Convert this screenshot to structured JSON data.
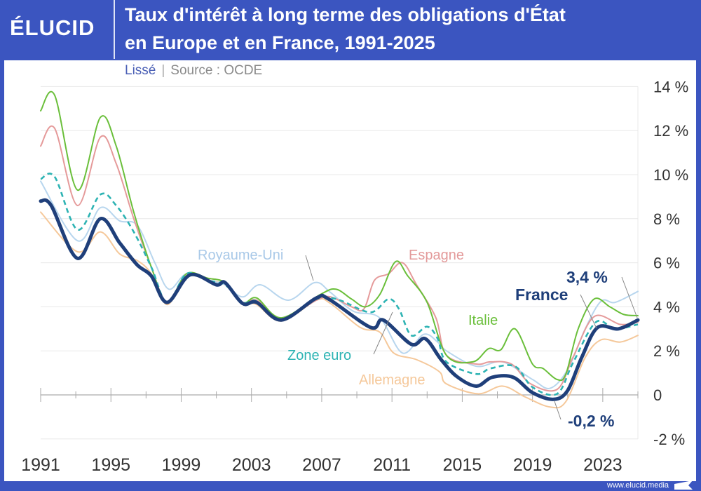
{
  "header": {
    "logo": "ÉLUCID",
    "title_line1": "Taux d'intérêt à long terme des obligations d'État",
    "title_line2": "en Europe et en France, 1991-2025",
    "subtitle_smoothed": "Lissé",
    "subtitle_separator": "|",
    "subtitle_source": "Source : OCDE"
  },
  "footer": {
    "website": "www.elucid.media"
  },
  "colors": {
    "header": "#3b55c0",
    "France": "#1f3f7a",
    "Italie": "#6abf3a",
    "Espagne": "#e59a9a",
    "Zone euro": "#2db3b3",
    "Royaume-Uni": "#b8d6ee",
    "Allemagne": "#f5c89a"
  },
  "chart_data": {
    "type": "line",
    "title": "Taux d'intérêt à long terme des obligations d'État en Europe et en France, 1991-2025",
    "xlim": [
      1991,
      2025
    ],
    "ylim": [
      -2,
      14
    ],
    "y_ticks": [
      "14 %",
      "12 %",
      "10 %",
      "8 %",
      "6 %",
      "4 %",
      "2 %",
      "0",
      "-2 %"
    ],
    "y_tick_values": [
      14,
      12,
      10,
      8,
      6,
      4,
      2,
      0,
      -2
    ],
    "x_ticks": [
      "1991",
      "1995",
      "1999",
      "2003",
      "2007",
      "2011",
      "2015",
      "2019",
      "2023"
    ],
    "x_tick_values": [
      1991,
      1995,
      1999,
      2003,
      2007,
      2011,
      2015,
      2019,
      2023
    ],
    "grid": true,
    "y_axis_side": "right",
    "annotations": {
      "last_france": "3,4 %",
      "min_france": "-0,2 %"
    },
    "series": [
      {
        "name": "Allemagne",
        "style": "solid",
        "points": [
          [
            1991,
            8.3
          ],
          [
            1993.1,
            6.5
          ],
          [
            1994.4,
            7.4
          ],
          [
            1995.5,
            6.4
          ],
          [
            1996.5,
            6.1
          ],
          [
            1997.3,
            5.5
          ],
          [
            1998.2,
            4.1
          ],
          [
            1999.3,
            5.4
          ],
          [
            2000.5,
            5.2
          ],
          [
            2001.5,
            5.0
          ],
          [
            2002.5,
            4.2
          ],
          [
            2003.3,
            4.1
          ],
          [
            2004.7,
            3.35
          ],
          [
            2006.7,
            4.3
          ],
          [
            2007.5,
            4.15
          ],
          [
            2009.2,
            3.06
          ],
          [
            2010.3,
            2.85
          ],
          [
            2011.1,
            1.9
          ],
          [
            2012.4,
            1.6
          ],
          [
            2013.7,
            1.05
          ],
          [
            2014.1,
            0.5
          ],
          [
            2015.9,
            0.05
          ],
          [
            2017.3,
            0.4
          ],
          [
            2018.6,
            -0.1
          ],
          [
            2020,
            -0.55
          ],
          [
            2020.9,
            -0.3
          ],
          [
            2022,
            1.7
          ],
          [
            2022.9,
            2.5
          ],
          [
            2024,
            2.4
          ],
          [
            2025,
            2.7
          ]
        ]
      },
      {
        "name": "Royaume-Uni",
        "style": "solid",
        "points": [
          [
            1991,
            9.7
          ],
          [
            1993.1,
            7.0
          ],
          [
            1994.4,
            8.5
          ],
          [
            1995.5,
            7.9
          ],
          [
            1996.5,
            7.7
          ],
          [
            1997.5,
            6.0
          ],
          [
            1998.3,
            4.8
          ],
          [
            1999.3,
            5.5
          ],
          [
            2000.5,
            5.2
          ],
          [
            2001.5,
            5.0
          ],
          [
            2002.5,
            4.45
          ],
          [
            2003.5,
            5.0
          ],
          [
            2005.1,
            4.3
          ],
          [
            2006.6,
            5.1
          ],
          [
            2007.5,
            4.65
          ],
          [
            2008.8,
            3.8
          ],
          [
            2010.3,
            3.5
          ],
          [
            2011.6,
            1.9
          ],
          [
            2012.8,
            2.75
          ],
          [
            2013.6,
            2.4
          ],
          [
            2014.1,
            2.0
          ],
          [
            2015.8,
            1.3
          ],
          [
            2017.3,
            1.5
          ],
          [
            2019,
            0.7
          ],
          [
            2020,
            0.3
          ],
          [
            2021,
            1.15
          ],
          [
            2022,
            3.0
          ],
          [
            2022.9,
            4.25
          ],
          [
            2023.7,
            4.2
          ],
          [
            2025,
            4.7
          ]
        ]
      },
      {
        "name": "Espagne",
        "style": "solid",
        "points": [
          [
            1991,
            11.3
          ],
          [
            1991.8,
            12.1
          ],
          [
            1993.1,
            8.6
          ],
          [
            1994.4,
            11.7
          ],
          [
            1995.3,
            10.5
          ],
          [
            1996.3,
            8.0
          ],
          [
            1997.3,
            5.8
          ],
          [
            1998.2,
            4.2
          ],
          [
            1999.3,
            5.5
          ],
          [
            2000.5,
            5.3
          ],
          [
            2001.5,
            5.1
          ],
          [
            2002.5,
            4.2
          ],
          [
            2003.3,
            4.3
          ],
          [
            2004.7,
            3.45
          ],
          [
            2006.7,
            4.3
          ],
          [
            2007.5,
            4.45
          ],
          [
            2008.7,
            4.0
          ],
          [
            2009.4,
            3.9
          ],
          [
            2010,
            5.2
          ],
          [
            2010.8,
            5.5
          ],
          [
            2011.6,
            6.0
          ],
          [
            2012.4,
            5.0
          ],
          [
            2013.5,
            3.5
          ],
          [
            2014.1,
            1.8
          ],
          [
            2015.8,
            1.4
          ],
          [
            2016.6,
            1.5
          ],
          [
            2017.8,
            1.4
          ],
          [
            2018.9,
            0.5
          ],
          [
            2020.4,
            0.25
          ],
          [
            2021.3,
            1.7
          ],
          [
            2022.5,
            3.55
          ],
          [
            2024,
            3.2
          ],
          [
            2025,
            3.3
          ]
        ]
      },
      {
        "name": "Italie",
        "style": "solid",
        "points": [
          [
            1991,
            12.9
          ],
          [
            1991.8,
            13.6
          ],
          [
            1993.1,
            9.3
          ],
          [
            1994.4,
            12.6
          ],
          [
            1995.3,
            11.3
          ],
          [
            1996.3,
            8.3
          ],
          [
            1997.3,
            5.8
          ],
          [
            1998.2,
            4.2
          ],
          [
            1999.3,
            5.5
          ],
          [
            2000.5,
            5.3
          ],
          [
            2001.5,
            5.1
          ],
          [
            2002.5,
            4.2
          ],
          [
            2003.3,
            4.4
          ],
          [
            2004.7,
            3.5
          ],
          [
            2006.9,
            4.55
          ],
          [
            2007.8,
            4.8
          ],
          [
            2008.7,
            4.35
          ],
          [
            2009.5,
            4.0
          ],
          [
            2010.3,
            4.55
          ],
          [
            2011.2,
            6.05
          ],
          [
            2011.9,
            5.4
          ],
          [
            2013,
            4.2
          ],
          [
            2014.1,
            1.8
          ],
          [
            2015.6,
            1.5
          ],
          [
            2016.5,
            2.1
          ],
          [
            2017.2,
            2.05
          ],
          [
            2018,
            3.0
          ],
          [
            2019,
            1.4
          ],
          [
            2019.6,
            1.2
          ],
          [
            2020.4,
            0.7
          ],
          [
            2020.9,
            0.95
          ],
          [
            2021.6,
            3.0
          ],
          [
            2022.5,
            4.35
          ],
          [
            2023.4,
            4.0
          ],
          [
            2024.2,
            3.65
          ],
          [
            2025,
            3.6
          ]
        ]
      },
      {
        "name": "Zone euro",
        "style": "dashed",
        "points": [
          [
            1991,
            9.8
          ],
          [
            1991.8,
            9.9
          ],
          [
            1993.1,
            7.5
          ],
          [
            1994.4,
            9.1
          ],
          [
            1995.3,
            8.6
          ],
          [
            1996.3,
            7.4
          ],
          [
            1997.3,
            5.8
          ],
          [
            1998.2,
            4.2
          ],
          [
            1999.3,
            5.5
          ],
          [
            2000.5,
            5.2
          ],
          [
            2001.5,
            5.0
          ],
          [
            2002.5,
            4.2
          ],
          [
            2003.3,
            4.25
          ],
          [
            2004.7,
            3.4
          ],
          [
            2006.7,
            4.35
          ],
          [
            2007.5,
            4.4
          ],
          [
            2008.2,
            4.25
          ],
          [
            2009.8,
            3.75
          ],
          [
            2010.8,
            4.35
          ],
          [
            2011.4,
            3.9
          ],
          [
            2012.1,
            2.7
          ],
          [
            2013,
            3.1
          ],
          [
            2013.6,
            2.55
          ],
          [
            2014.1,
            1.5
          ],
          [
            2015.8,
            0.95
          ],
          [
            2016.6,
            1.2
          ],
          [
            2018,
            1.3
          ],
          [
            2019,
            0.35
          ],
          [
            2020.4,
            0.05
          ],
          [
            2021.3,
            1.45
          ],
          [
            2022.6,
            3.3
          ],
          [
            2023.7,
            3.0
          ],
          [
            2025,
            3.2
          ]
        ]
      },
      {
        "name": "France",
        "style": "bold",
        "points": [
          [
            1991,
            8.8
          ],
          [
            1991.6,
            8.6
          ],
          [
            1993.1,
            6.2
          ],
          [
            1994.4,
            8.0
          ],
          [
            1995.5,
            6.9
          ],
          [
            1996.5,
            5.9
          ],
          [
            1997.3,
            5.4
          ],
          [
            1998.2,
            4.2
          ],
          [
            1999.5,
            5.45
          ],
          [
            2001,
            5.0
          ],
          [
            2001.5,
            5.1
          ],
          [
            2002.5,
            4.15
          ],
          [
            2003.3,
            4.2
          ],
          [
            2004.7,
            3.4
          ],
          [
            2006.7,
            4.4
          ],
          [
            2007.4,
            4.35
          ],
          [
            2009.8,
            3.06
          ],
          [
            2010.5,
            3.4
          ],
          [
            2012.1,
            2.3
          ],
          [
            2012.9,
            2.55
          ],
          [
            2013.8,
            1.6
          ],
          [
            2014.7,
            0.83
          ],
          [
            2015.8,
            0.4
          ],
          [
            2016.7,
            0.8
          ],
          [
            2017.9,
            0.8
          ],
          [
            2019,
            0.1
          ],
          [
            2020.2,
            -0.2
          ],
          [
            2021,
            0.2
          ],
          [
            2021.8,
            1.7
          ],
          [
            2022.7,
            3.06
          ],
          [
            2023.9,
            3.0
          ],
          [
            2025,
            3.4
          ]
        ]
      }
    ]
  }
}
